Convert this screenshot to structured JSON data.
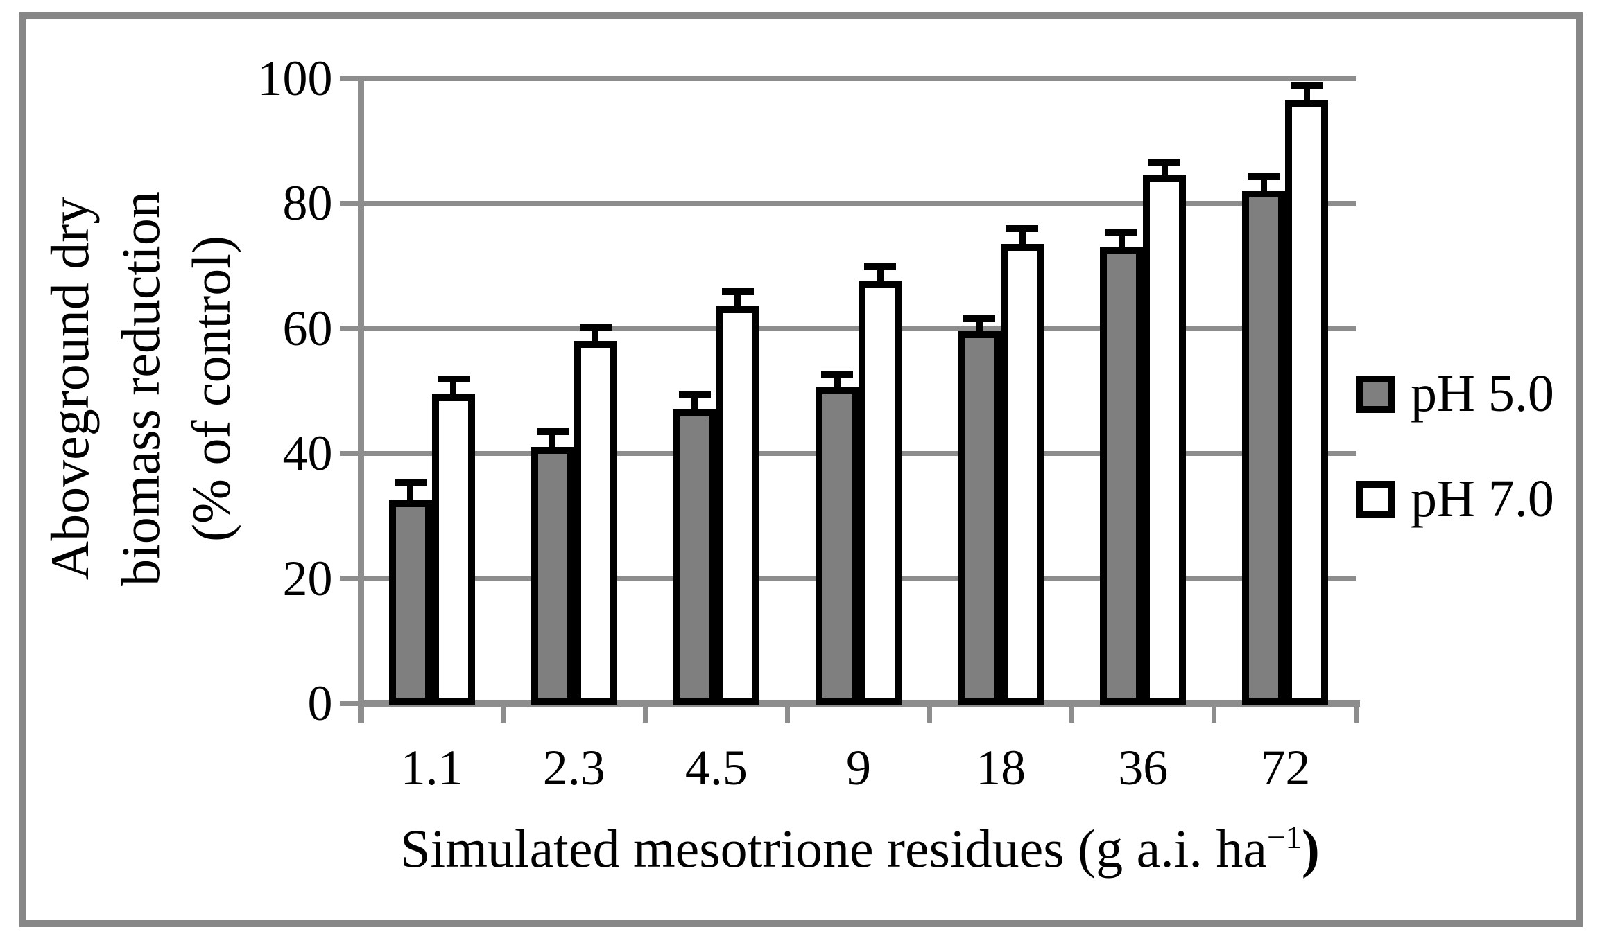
{
  "figure": {
    "y_axis": {
      "title_lines": [
        "Aboveground dry",
        "biomass reduction",
        "(% of control)"
      ],
      "tick_labels": [
        "0",
        "20",
        "40",
        "60",
        "80",
        "100"
      ]
    },
    "x_axis": {
      "title_prefix": "Simulated mesotrione residues (g a.i. ha",
      "title_sup": "−1",
      "title_suffix": ")",
      "tick_labels": [
        "1.1",
        "2.3",
        "4.5",
        "9",
        "18",
        "36",
        "72"
      ]
    },
    "legend": [
      {
        "label": "pH 5.0",
        "color": "#7f7f7f"
      },
      {
        "label": "pH 7.0",
        "color": "#ffffff"
      }
    ]
  },
  "colors": {
    "bar_border": "#000000",
    "gridline": "#8d8d8d",
    "axis": "#8d8d8d",
    "frame": "#878787",
    "ph5_fill": "#7f7f7f",
    "ph7_fill": "#ffffff"
  },
  "chart_data": {
    "type": "bar",
    "title": "",
    "xlabel": "Simulated mesotrione residues (g a.i. ha−1)",
    "ylabel": "Aboveground dry biomass reduction (% of control)",
    "categories": [
      "1.1",
      "2.3",
      "4.5",
      "9",
      "18",
      "36",
      "72"
    ],
    "series": [
      {
        "name": "pH 5.0",
        "color": "#7f7f7f",
        "values": [
          32.5,
          41,
          47,
          50.5,
          59.5,
          73,
          82
        ],
        "errors_plus": [
          2.8,
          2.5,
          2.5,
          2.2,
          2.0,
          2.3,
          2.3
        ]
      },
      {
        "name": "pH 7.0",
        "color": "#ffffff",
        "values": [
          49.5,
          58,
          63.5,
          67.5,
          73.5,
          84.5,
          96.5
        ],
        "errors_plus": [
          2.4,
          2.2,
          2.4,
          2.5,
          2.4,
          2.1,
          2.4
        ]
      }
    ],
    "ylim": [
      0,
      100
    ],
    "ytick_step": 20,
    "grid": true,
    "error_bars": "upper_only",
    "legend_position": "right"
  }
}
